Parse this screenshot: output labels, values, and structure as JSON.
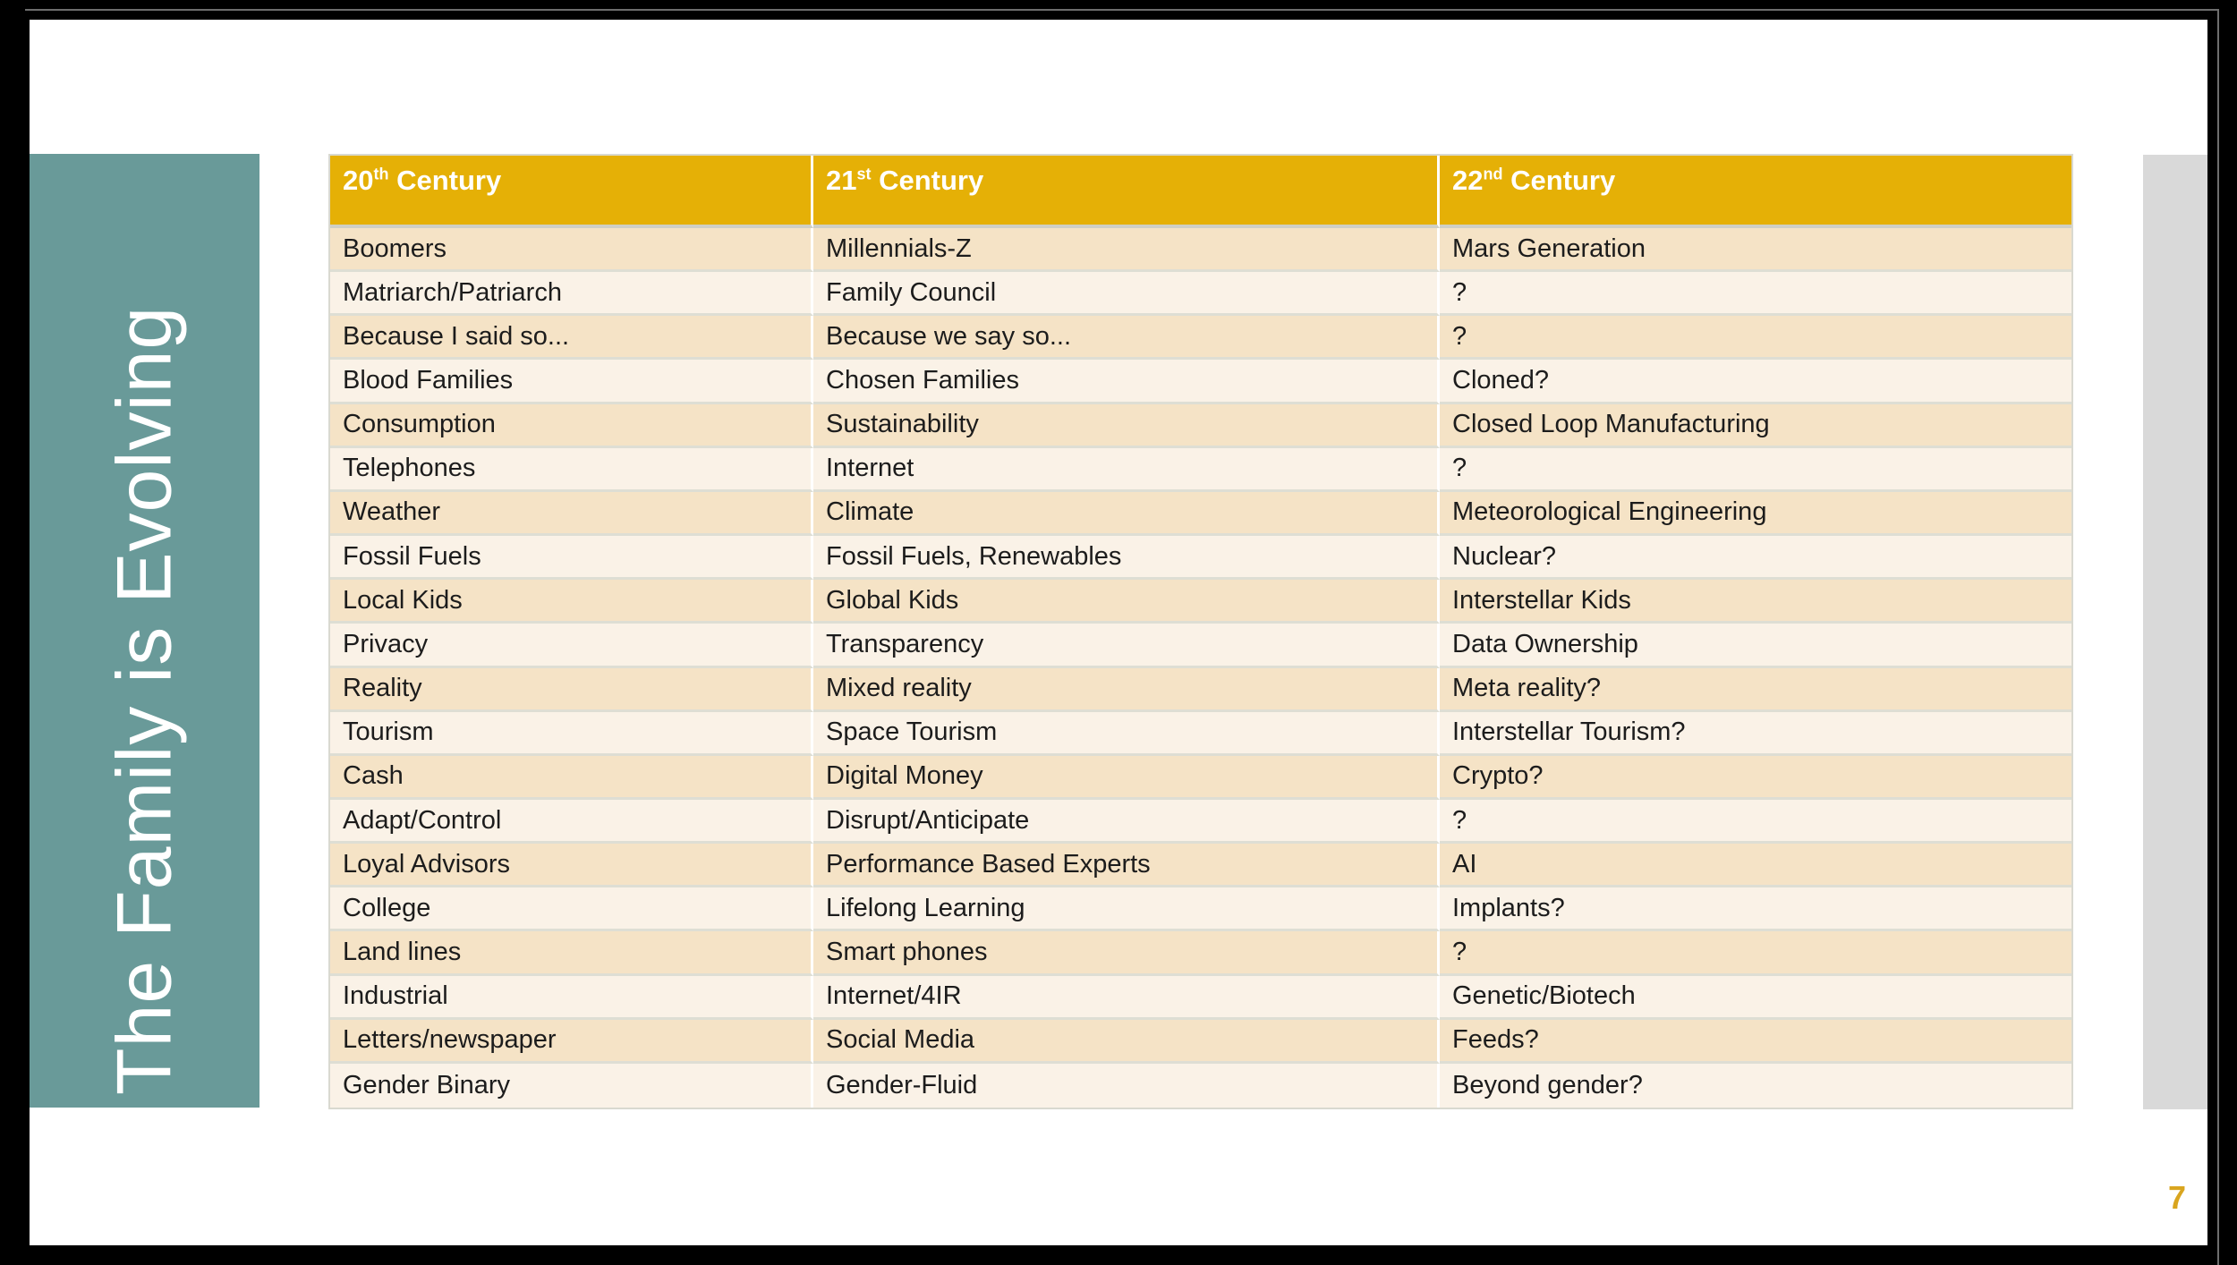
{
  "slide": {
    "sidebar_title": "The Family is Evolving",
    "page_number": "7",
    "colors": {
      "header_gold": "#E5B006",
      "teal_sidebar": "#699A99",
      "row_tan": "#F5E3C6",
      "row_cream": "#FAF2E7",
      "row_separator": "#DEDED4",
      "gray_bar": "#D9D9D9",
      "page_number_gold": "#D9A51F",
      "body_text": "#1C1C1C"
    },
    "table": {
      "headers": [
        {
          "num": "20",
          "sup": "th",
          "rest": " Century"
        },
        {
          "num": "21",
          "sup": "st",
          "rest": " Century"
        },
        {
          "num": "22",
          "sup": "nd",
          "rest": " Century"
        }
      ],
      "rows": [
        [
          "Boomers",
          "Millennials-Z",
          "Mars Generation"
        ],
        [
          "Matriarch/Patriarch",
          "Family Council",
          "?"
        ],
        [
          "Because I said so...",
          "Because we say so...",
          "?"
        ],
        [
          "Blood Families",
          "Chosen Families",
          "Cloned?"
        ],
        [
          "Consumption",
          "Sustainability",
          "Closed Loop Manufacturing"
        ],
        [
          "Telephones",
          "Internet",
          "?"
        ],
        [
          "Weather",
          "Climate",
          "Meteorological Engineering"
        ],
        [
          "Fossil Fuels",
          "Fossil Fuels, Renewables",
          "Nuclear?"
        ],
        [
          "Local Kids",
          "Global Kids",
          "Interstellar Kids"
        ],
        [
          "Privacy",
          "Transparency",
          "Data Ownership"
        ],
        [
          "Reality",
          "Mixed reality",
          "Meta reality?"
        ],
        [
          "Tourism",
          "Space Tourism",
          "Interstellar Tourism?"
        ],
        [
          "Cash",
          "Digital Money",
          "Crypto?"
        ],
        [
          "Adapt/Control",
          "Disrupt/Anticipate",
          "?"
        ],
        [
          "Loyal Advisors",
          "Performance Based Experts",
          "AI"
        ],
        [
          "College",
          "Lifelong Learning",
          "Implants?"
        ],
        [
          "Land lines",
          "Smart phones",
          "?"
        ],
        [
          "Industrial",
          "Internet/4IR",
          "Genetic/Biotech"
        ],
        [
          "Letters/newspaper",
          "Social Media",
          "Feeds?"
        ],
        [
          "Gender Binary",
          "Gender-Fluid",
          "Beyond gender?"
        ]
      ]
    }
  }
}
